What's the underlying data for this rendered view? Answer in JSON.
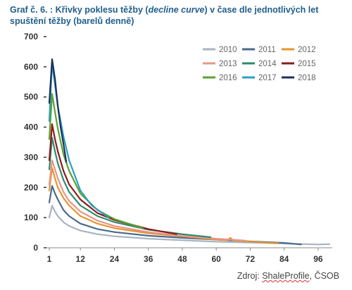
{
  "title": {
    "part1": "Graf č. 6. : Křivky poklesu těžby (",
    "italic": "decline curve",
    "part2": ") v čase dle jednotlivých let spuštění těžby (barelů denně)"
  },
  "source": {
    "prefix": "Zdroj: ",
    "link": "ShaleProfile",
    "suffix": ", ČSOB"
  },
  "chart_data": {
    "type": "line",
    "title": "",
    "xlabel": "",
    "ylabel": "",
    "xlim": [
      0,
      101
    ],
    "ylim": [
      0,
      700
    ],
    "x_ticks": [
      "1",
      "12",
      "24",
      "36",
      "48",
      "60",
      "72",
      "84",
      "96"
    ],
    "y_ticks": [
      "0",
      "100",
      "200",
      "300",
      "400",
      "500",
      "600",
      "700"
    ],
    "grid": false,
    "legend_position": "top-right",
    "series": [
      {
        "name": "2010",
        "color": "#a8b4c2",
        "x": [
          1,
          2,
          3,
          4,
          6,
          8,
          12,
          18,
          24,
          36,
          48,
          60,
          72,
          84,
          96,
          100
        ],
        "y": [
          100,
          140,
          120,
          105,
          85,
          72,
          57,
          45,
          38,
          30,
          25,
          20,
          17,
          14,
          11,
          12
        ]
      },
      {
        "name": "2011",
        "color": "#4a6a8e",
        "x": [
          1,
          2,
          3,
          4,
          6,
          8,
          12,
          18,
          24,
          36,
          48,
          60,
          72,
          84,
          90
        ],
        "y": [
          150,
          205,
          180,
          160,
          125,
          105,
          80,
          62,
          52,
          40,
          33,
          27,
          21,
          16,
          11
        ]
      },
      {
        "name": "2012",
        "color": "#e8932e",
        "x": [
          1,
          2,
          3,
          4,
          6,
          8,
          12,
          18,
          24,
          36,
          48,
          60,
          64,
          65,
          66,
          72,
          82
        ],
        "y": [
          190,
          265,
          230,
          200,
          165,
          140,
          105,
          80,
          65,
          48,
          38,
          27,
          25,
          33,
          24,
          20,
          15
        ]
      },
      {
        "name": "2013",
        "color": "#e8958a",
        "x": [
          1,
          2,
          3,
          4,
          6,
          8,
          12,
          18,
          24,
          36,
          48,
          60,
          70
        ],
        "y": [
          210,
          290,
          260,
          230,
          185,
          155,
          120,
          90,
          72,
          52,
          40,
          30,
          24
        ]
      },
      {
        "name": "2014",
        "color": "#2e8a6e",
        "x": [
          1,
          2,
          3,
          4,
          6,
          8,
          12,
          18,
          24,
          36,
          48,
          58
        ],
        "y": [
          260,
          365,
          320,
          280,
          225,
          185,
          140,
          105,
          85,
          60,
          45,
          35
        ]
      },
      {
        "name": "2015",
        "color": "#8c1a1a",
        "x": [
          1,
          2,
          3,
          4,
          6,
          8,
          12,
          18,
          24,
          36,
          46
        ],
        "y": [
          290,
          410,
          360,
          320,
          255,
          210,
          160,
          115,
          92,
          62,
          45
        ]
      },
      {
        "name": "2016",
        "color": "#5aa22e",
        "x": [
          1,
          2,
          3,
          4,
          6,
          8,
          12,
          18,
          24,
          34
        ],
        "y": [
          360,
          510,
          450,
          395,
          310,
          255,
          180,
          125,
          95,
          65
        ]
      },
      {
        "name": "2017",
        "color": "#2e9ec2",
        "x": [
          1,
          2,
          3,
          4,
          6,
          8,
          12,
          16,
          22
        ],
        "y": [
          420,
          610,
          540,
          470,
          370,
          290,
          190,
          140,
          100
        ]
      },
      {
        "name": "2018",
        "color": "#1c2f5a",
        "x": [
          1,
          2,
          3,
          4,
          5,
          6,
          7
        ],
        "y": [
          480,
          625,
          560,
          470,
          400,
          345,
          285
        ]
      }
    ]
  }
}
